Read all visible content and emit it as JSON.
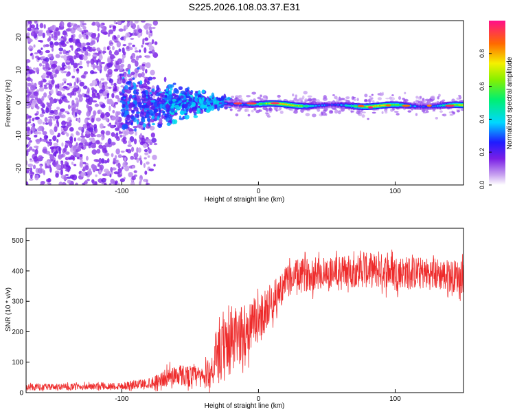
{
  "title": "S225.2026.108.03.37.E31",
  "colors": {
    "snr_line": "#ee2b2b",
    "axis": "#000000",
    "background": "#ffffff"
  },
  "chart_data": [
    {
      "type": "heatmap",
      "xlabel": "Height of straight line (km)",
      "ylabel": "Frequency (Hz)",
      "xlim": [
        -170,
        150
      ],
      "ylim": [
        -25,
        25
      ],
      "xticks": [
        -100,
        0,
        100
      ],
      "yticks": [
        -20,
        -10,
        0,
        10,
        20
      ],
      "colorbar": {
        "label": "Normalized spectral amplitude",
        "range": [
          0,
          1
        ],
        "ticks": [
          0.0,
          0.2,
          0.4,
          0.6,
          0.8
        ]
      },
      "description_regions": [
        {
          "x_range": [
            -170,
            -80
          ],
          "amplitude": 0.12,
          "freq_spread": 25
        },
        {
          "x_range": [
            -80,
            -25
          ],
          "amplitude": 0.3,
          "freq_spread": 10
        },
        {
          "x_range": [
            -25,
            150
          ],
          "amplitude": 0.6,
          "freq_spread": 2,
          "center_freq": -1
        }
      ]
    },
    {
      "type": "line",
      "xlabel": "Height of straight line (km)",
      "ylabel": "SNR (10 * v/v)",
      "xlim": [
        -170,
        150
      ],
      "ylim": [
        0,
        540
      ],
      "xticks": [
        -100,
        0,
        100
      ],
      "yticks": [
        0,
        100,
        200,
        300,
        400,
        500
      ],
      "series": [
        {
          "name": "SNR",
          "x": [
            -170,
            -150,
            -120,
            -100,
            -80,
            -70,
            -60,
            -50,
            -40,
            -35,
            -30,
            -25,
            -20,
            -15,
            -10,
            -5,
            0,
            5,
            10,
            15,
            20,
            25,
            30,
            40,
            50,
            60,
            70,
            80,
            90,
            100,
            110,
            120,
            130,
            140,
            150
          ],
          "mean": [
            18,
            18,
            20,
            22,
            30,
            45,
            60,
            55,
            50,
            70,
            110,
            140,
            170,
            180,
            200,
            220,
            240,
            270,
            300,
            330,
            360,
            380,
            385,
            390,
            395,
            398,
            400,
            402,
            400,
            398,
            395,
            392,
            390,
            385,
            380
          ],
          "amp": [
            12,
            12,
            12,
            15,
            20,
            30,
            40,
            40,
            40,
            60,
            90,
            120,
            130,
            110,
            100,
            100,
            80,
            80,
            70,
            60,
            60,
            60,
            60,
            60,
            60,
            60,
            60,
            65,
            65,
            60,
            60,
            60,
            60,
            60,
            60
          ]
        }
      ]
    }
  ]
}
